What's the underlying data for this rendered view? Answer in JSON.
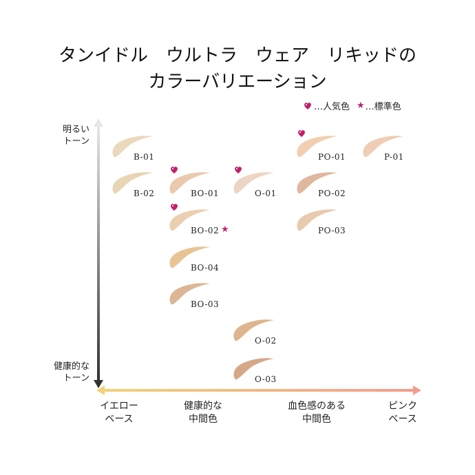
{
  "title_line1": "タンイドル　ウルトラ　ウェア　リキッドの",
  "title_line2": "カラーバリエーション",
  "legend": {
    "popular": "…人気色",
    "standard": "…標準色",
    "popular_icon": "heart-icon",
    "standard_icon": "star-icon"
  },
  "yaxis": {
    "top": "明るい\nトーン",
    "bottom": "健康的な\nトーン"
  },
  "xaxis": {
    "labels": [
      "イエロー\nベース",
      "健康的な\n中間色",
      "血色感のある\n中間色",
      "ピンク\nベース"
    ]
  },
  "colors": {
    "B-01": "#ead9bd",
    "B-02": "#e8d5b4",
    "BO-01": "#ebc9ad",
    "O-01": "#edd5c5",
    "BO-02": "#eccfb1",
    "BO-04": "#e8c495",
    "BO-03": "#ddb696",
    "O-02": "#ddb58e",
    "O-03": "#d4a889",
    "PO-01": "#f1cfb0",
    "PO-02": "#e0b79f",
    "PO-03": "#e8caaf",
    "P-01": "#f0cdb6",
    "accent_pink": "#c1216b",
    "axis_yellow": "#f2d27a",
    "axis_pink": "#f39d8d"
  },
  "shades": [
    {
      "code": "B-01",
      "popular": false,
      "standard": false
    },
    {
      "code": "B-02",
      "popular": false,
      "standard": false
    },
    {
      "code": "BO-01",
      "popular": true,
      "standard": false
    },
    {
      "code": "O-01",
      "popular": true,
      "standard": false
    },
    {
      "code": "BO-02",
      "popular": true,
      "standard": true
    },
    {
      "code": "BO-04",
      "popular": false,
      "standard": false
    },
    {
      "code": "BO-03",
      "popular": false,
      "standard": false
    },
    {
      "code": "O-02",
      "popular": false,
      "standard": false
    },
    {
      "code": "O-03",
      "popular": false,
      "standard": false
    },
    {
      "code": "PO-01",
      "popular": true,
      "standard": false
    },
    {
      "code": "PO-02",
      "popular": false,
      "standard": false
    },
    {
      "code": "PO-03",
      "popular": false,
      "standard": false
    },
    {
      "code": "P-01",
      "popular": false,
      "standard": false
    }
  ]
}
